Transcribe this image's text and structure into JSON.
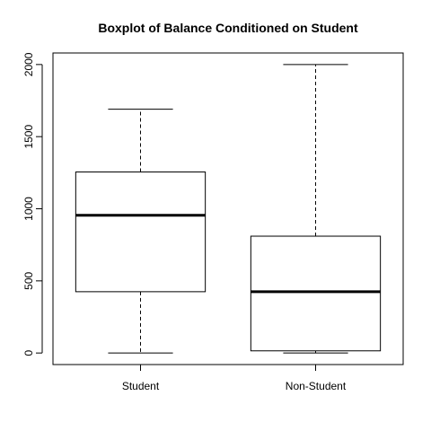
{
  "chart_data": {
    "type": "boxplot",
    "title": "Boxplot of Balance Conditioned on Student",
    "xlabel": "",
    "ylabel": "",
    "ylim": [
      -80,
      2080
    ],
    "y_ticks": [
      0,
      500,
      1000,
      1500,
      2000
    ],
    "categories": [
      "Student",
      "Non-Student"
    ],
    "boxes": [
      {
        "category": "Student",
        "whisker_low": 0,
        "q1": 425,
        "median": 955,
        "q3": 1255,
        "whisker_high": 1690
      },
      {
        "category": "Non-Student",
        "whisker_low": 0,
        "q1": 15,
        "median": 425,
        "q3": 810,
        "whisker_high": 2000
      }
    ],
    "colors": {
      "box_fill": "#ffffff",
      "stroke": "#000000"
    }
  }
}
